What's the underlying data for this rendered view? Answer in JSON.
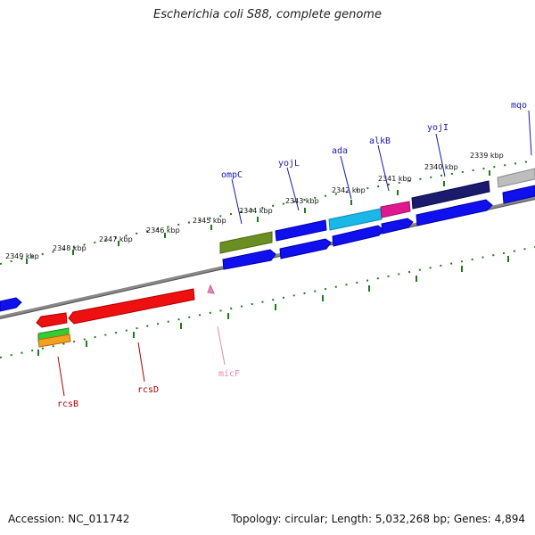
{
  "title": "Escherichia coli S88, complete genome",
  "footer": {
    "accession": "Accession: NC_011742",
    "summary": "Topology: circular; Length: 5,032,268 bp; Genes: 4,894"
  },
  "colors": {
    "backbone": "#8a8a8a",
    "tick": "#1e7a1e",
    "forward_gene": "#0000ee",
    "reverse_gene": "#ee0000",
    "label_forward": "#1a1aaa",
    "label_reverse": "#aa0000",
    "label_rna": "#e08ab0"
  },
  "scale_labels": [
    "2349 kbp",
    "2348 kbp",
    "2347 kbp",
    "2346 kbp",
    "2345 kbp",
    "2344 kbp",
    "2343 kbp",
    "2342 kbp",
    "2341 kbp",
    "2340 kbp",
    "2339 kbp"
  ],
  "gene_labels": {
    "mqo": "mqo",
    "yojI": "yojI",
    "alkB": "alkB",
    "ada": "ada",
    "yojL": "yojL",
    "ompC": "ompC",
    "micF": "micF",
    "rcsD": "rcsD",
    "rcsB": "rcsB"
  }
}
